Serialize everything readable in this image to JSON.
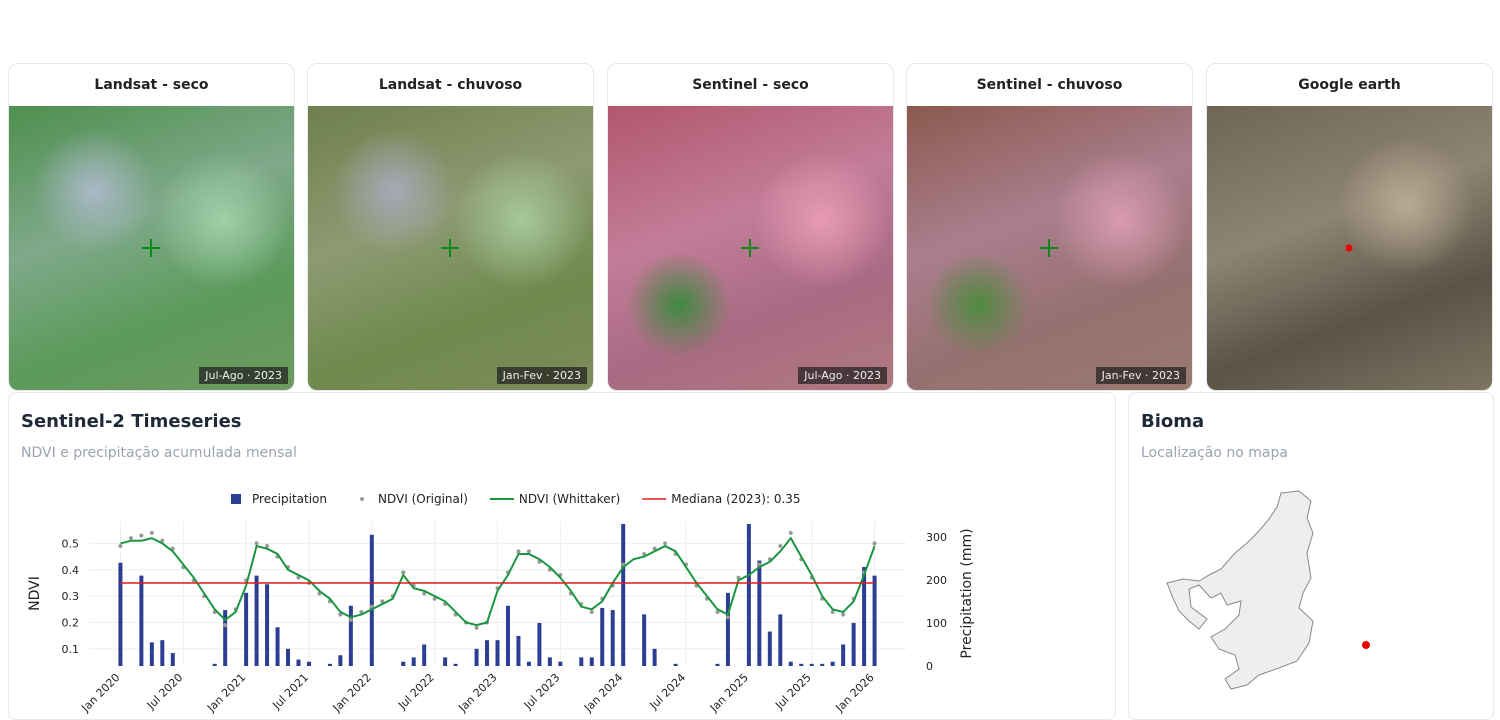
{
  "image_cards": [
    {
      "title": "Landsat - seco",
      "caption": "Jul-Ago · 2023"
    },
    {
      "title": "Landsat - chuvoso",
      "caption": "Jan-Fev · 2023"
    },
    {
      "title": "Sentinel - seco",
      "caption": "Jul-Ago · 2023"
    },
    {
      "title": "Sentinel - chuvoso",
      "caption": "Jan-Fev · 2023"
    },
    {
      "title": "Google earth"
    }
  ],
  "timeseries_panel": {
    "title": "Sentinel-2 Timeseries",
    "subtitle": "NDVI e precipitação acumulada mensal"
  },
  "bioma_panel": {
    "title": "Bioma",
    "subtitle": "Localização no mapa"
  },
  "chart_data": {
    "type": "combo",
    "x": [
      "2020-01",
      "2020-02",
      "2020-03",
      "2020-04",
      "2020-05",
      "2020-06",
      "2020-07",
      "2020-08",
      "2020-09",
      "2020-10",
      "2020-11",
      "2020-12",
      "2021-01",
      "2021-02",
      "2021-03",
      "2021-04",
      "2021-05",
      "2021-06",
      "2021-07",
      "2021-08",
      "2021-09",
      "2021-10",
      "2021-11",
      "2021-12",
      "2022-01",
      "2022-02",
      "2022-03",
      "2022-04",
      "2022-05",
      "2022-06",
      "2022-07",
      "2022-08",
      "2022-09",
      "2022-10",
      "2022-11",
      "2022-12",
      "2023-01",
      "2023-02",
      "2023-03",
      "2023-04",
      "2023-05",
      "2023-06",
      "2023-07",
      "2023-08",
      "2023-09",
      "2023-10",
      "2023-11",
      "2023-12",
      "2024-01",
      "2024-02",
      "2024-03",
      "2024-04",
      "2024-05",
      "2024-06",
      "2024-07",
      "2024-08",
      "2024-09",
      "2024-10",
      "2024-11",
      "2024-12",
      "2025-01",
      "2025-02",
      "2025-03",
      "2025-04",
      "2025-05",
      "2025-06",
      "2025-07",
      "2025-08",
      "2025-09",
      "2025-10",
      "2025-11",
      "2025-12",
      "2026-01"
    ],
    "series": [
      {
        "name": "Precipitation",
        "type": "bar",
        "axis": "y2",
        "color": "#2c3e91",
        "values": [
          240,
          0,
          210,
          55,
          60,
          30,
          0,
          0,
          0,
          5,
          130,
          0,
          170,
          210,
          190,
          90,
          40,
          15,
          10,
          0,
          5,
          25,
          140,
          0,
          305,
          0,
          0,
          10,
          20,
          50,
          0,
          20,
          5,
          0,
          40,
          60,
          60,
          140,
          70,
          10,
          100,
          20,
          10,
          0,
          20,
          20,
          135,
          130,
          330,
          0,
          120,
          40,
          0,
          5,
          0,
          0,
          0,
          5,
          170,
          0,
          330,
          245,
          80,
          120,
          10,
          5,
          5,
          5,
          10,
          50,
          100,
          230,
          210
        ]
      },
      {
        "name": "NDVI (Original)",
        "type": "scatter",
        "color": "#999999",
        "values": [
          0.49,
          0.52,
          0.53,
          0.54,
          0.51,
          0.48,
          0.41,
          0.36,
          0.3,
          0.24,
          0.19,
          0.25,
          0.36,
          0.5,
          0.49,
          0.45,
          0.41,
          0.37,
          0.35,
          0.31,
          0.28,
          0.23,
          0.21,
          0.24,
          0.26,
          0.28,
          0.3,
          0.39,
          0.34,
          0.31,
          0.29,
          0.27,
          0.23,
          0.2,
          0.18,
          0.2,
          0.33,
          0.39,
          0.47,
          0.47,
          0.43,
          0.4,
          0.38,
          0.31,
          0.27,
          0.24,
          0.29,
          0.34,
          0.42,
          null,
          0.46,
          0.48,
          0.5,
          0.46,
          0.42,
          0.34,
          0.29,
          0.24,
          0.22,
          0.37,
          null,
          0.42,
          0.44,
          0.49,
          0.54,
          0.44,
          0.37,
          0.29,
          0.24,
          0.23,
          0.29,
          0.39,
          0.5
        ]
      },
      {
        "name": "NDVI (Whittaker)",
        "type": "line",
        "color": "#1a9641",
        "values": [
          0.5,
          0.51,
          0.51,
          0.52,
          0.5,
          0.47,
          0.42,
          0.37,
          0.31,
          0.25,
          0.21,
          0.24,
          0.34,
          0.49,
          0.48,
          0.46,
          0.4,
          0.38,
          0.36,
          0.32,
          0.29,
          0.24,
          0.22,
          0.23,
          0.25,
          0.27,
          0.29,
          0.38,
          0.33,
          0.32,
          0.3,
          0.28,
          0.24,
          0.2,
          0.19,
          0.2,
          0.32,
          0.38,
          0.46,
          0.46,
          0.44,
          0.41,
          0.37,
          0.32,
          0.26,
          0.25,
          0.28,
          0.35,
          0.41,
          0.44,
          0.45,
          0.47,
          0.49,
          0.47,
          0.41,
          0.35,
          0.3,
          0.25,
          0.23,
          0.36,
          0.38,
          0.41,
          0.43,
          0.47,
          0.52,
          0.45,
          0.38,
          0.3,
          0.25,
          0.24,
          0.28,
          0.38,
          0.49
        ]
      }
    ],
    "median": {
      "name": "Mediana (2023): 0.35",
      "value": 0.35,
      "color": "#e31a1c"
    },
    "y_label": "NDVI",
    "y2_label": "Precipitation (mm)",
    "xlim": [
      "2019-10",
      "2026-04"
    ],
    "xticks": [
      {
        "value": "2020-01",
        "label": "Jan 2020"
      },
      {
        "value": "2020-07",
        "label": "Jul 2020"
      },
      {
        "value": "2021-01",
        "label": "Jan 2021"
      },
      {
        "value": "2021-07",
        "label": "Jul 2021"
      },
      {
        "value": "2022-01",
        "label": "Jan 2022"
      },
      {
        "value": "2022-07",
        "label": "Jul 2022"
      },
      {
        "value": "2023-01",
        "label": "Jan 2023"
      },
      {
        "value": "2023-07",
        "label": "Jul 2023"
      },
      {
        "value": "2024-01",
        "label": "Jan 2024"
      },
      {
        "value": "2024-07",
        "label": "Jul 2024"
      },
      {
        "value": "2025-01",
        "label": "Jan 2025"
      },
      {
        "value": "2025-07",
        "label": "Jul 2025"
      },
      {
        "value": "2026-01",
        "label": "Jan 2026"
      }
    ],
    "ylim": [
      0.035,
      0.585
    ],
    "yticks": [
      0.1,
      0.2,
      0.3,
      0.4,
      0.5
    ],
    "y2lim": [
      0,
      337
    ],
    "y2ticks": [
      0,
      100,
      200,
      300
    ],
    "grid": true
  }
}
